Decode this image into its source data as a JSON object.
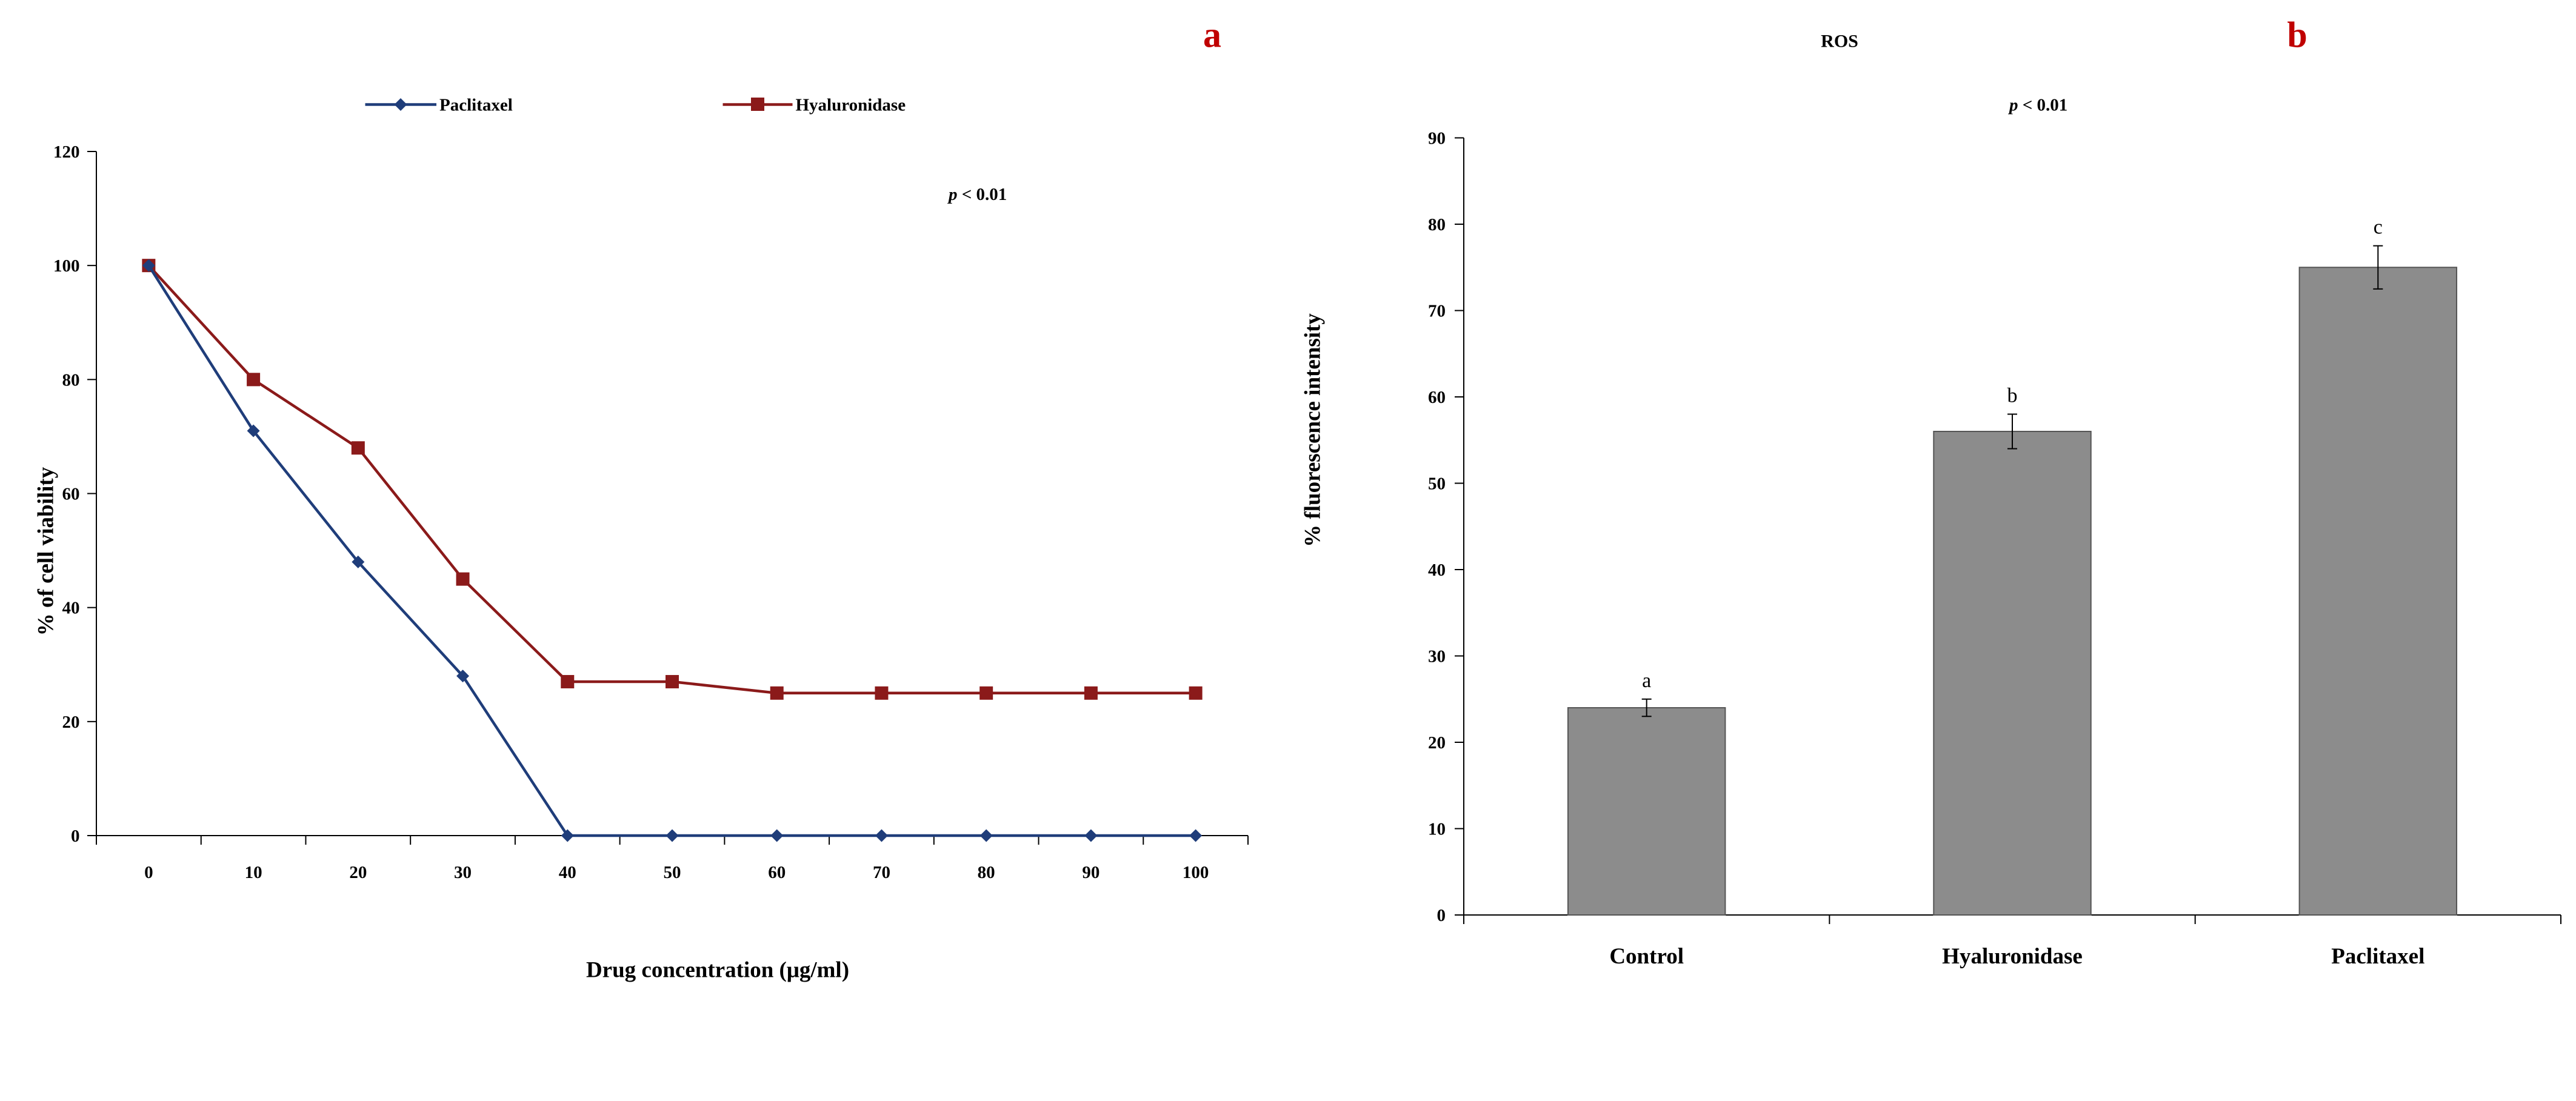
{
  "colors": {
    "paclitaxel": "#1f3d7a",
    "hyaluronidase": "#8b1a1a",
    "bar_fill": "#8c8c8c",
    "bar_stroke": "#555555",
    "panel_label": "#c00000"
  },
  "chart_data": [
    {
      "type": "line",
      "panel_label": "a",
      "title": "",
      "xlabel": "Drug concentration (μg/ml)",
      "ylabel": "% of cell viability",
      "x": [
        0,
        10,
        20,
        30,
        40,
        50,
        60,
        70,
        80,
        90,
        100
      ],
      "x_tick_labels": [
        "0",
        "10",
        "20",
        "30",
        "40",
        "50",
        "60",
        "70",
        "80",
        "90",
        "100"
      ],
      "y_ticks": [
        0,
        20,
        40,
        60,
        80,
        100,
        120
      ],
      "y_tick_labels": [
        "0",
        "20",
        "40",
        "60",
        "80",
        "100",
        "120"
      ],
      "ylim": [
        0,
        120
      ],
      "annotation": {
        "p": "p",
        "rest": " < 0.01"
      },
      "legend_position": "top",
      "series": [
        {
          "name": "Paclitaxel",
          "marker": "diamond",
          "values": [
            100,
            71,
            48,
            28,
            0,
            0,
            0,
            0,
            0,
            0,
            0
          ]
        },
        {
          "name": "Hyaluronidase",
          "marker": "square",
          "values": [
            100,
            80,
            68,
            45,
            27,
            27,
            25,
            25,
            25,
            25,
            25
          ]
        }
      ]
    },
    {
      "type": "bar",
      "panel_label": "b",
      "title": "ROS",
      "xlabel": "",
      "ylabel": "% fluorescence intensity",
      "categories": [
        "Control",
        "Hyaluronidase",
        "Paclitaxel"
      ],
      "values": [
        24,
        56,
        75
      ],
      "errors": [
        1,
        2,
        2.5
      ],
      "letters": [
        "a",
        "b",
        "c"
      ],
      "y_ticks": [
        0,
        10,
        20,
        30,
        40,
        50,
        60,
        70,
        80,
        90
      ],
      "y_tick_labels": [
        "0",
        "10",
        "20",
        "30",
        "40",
        "50",
        "60",
        "70",
        "80",
        "90"
      ],
      "ylim": [
        0,
        90
      ],
      "annotation": {
        "p": "p",
        "rest": " < 0.01"
      }
    }
  ]
}
